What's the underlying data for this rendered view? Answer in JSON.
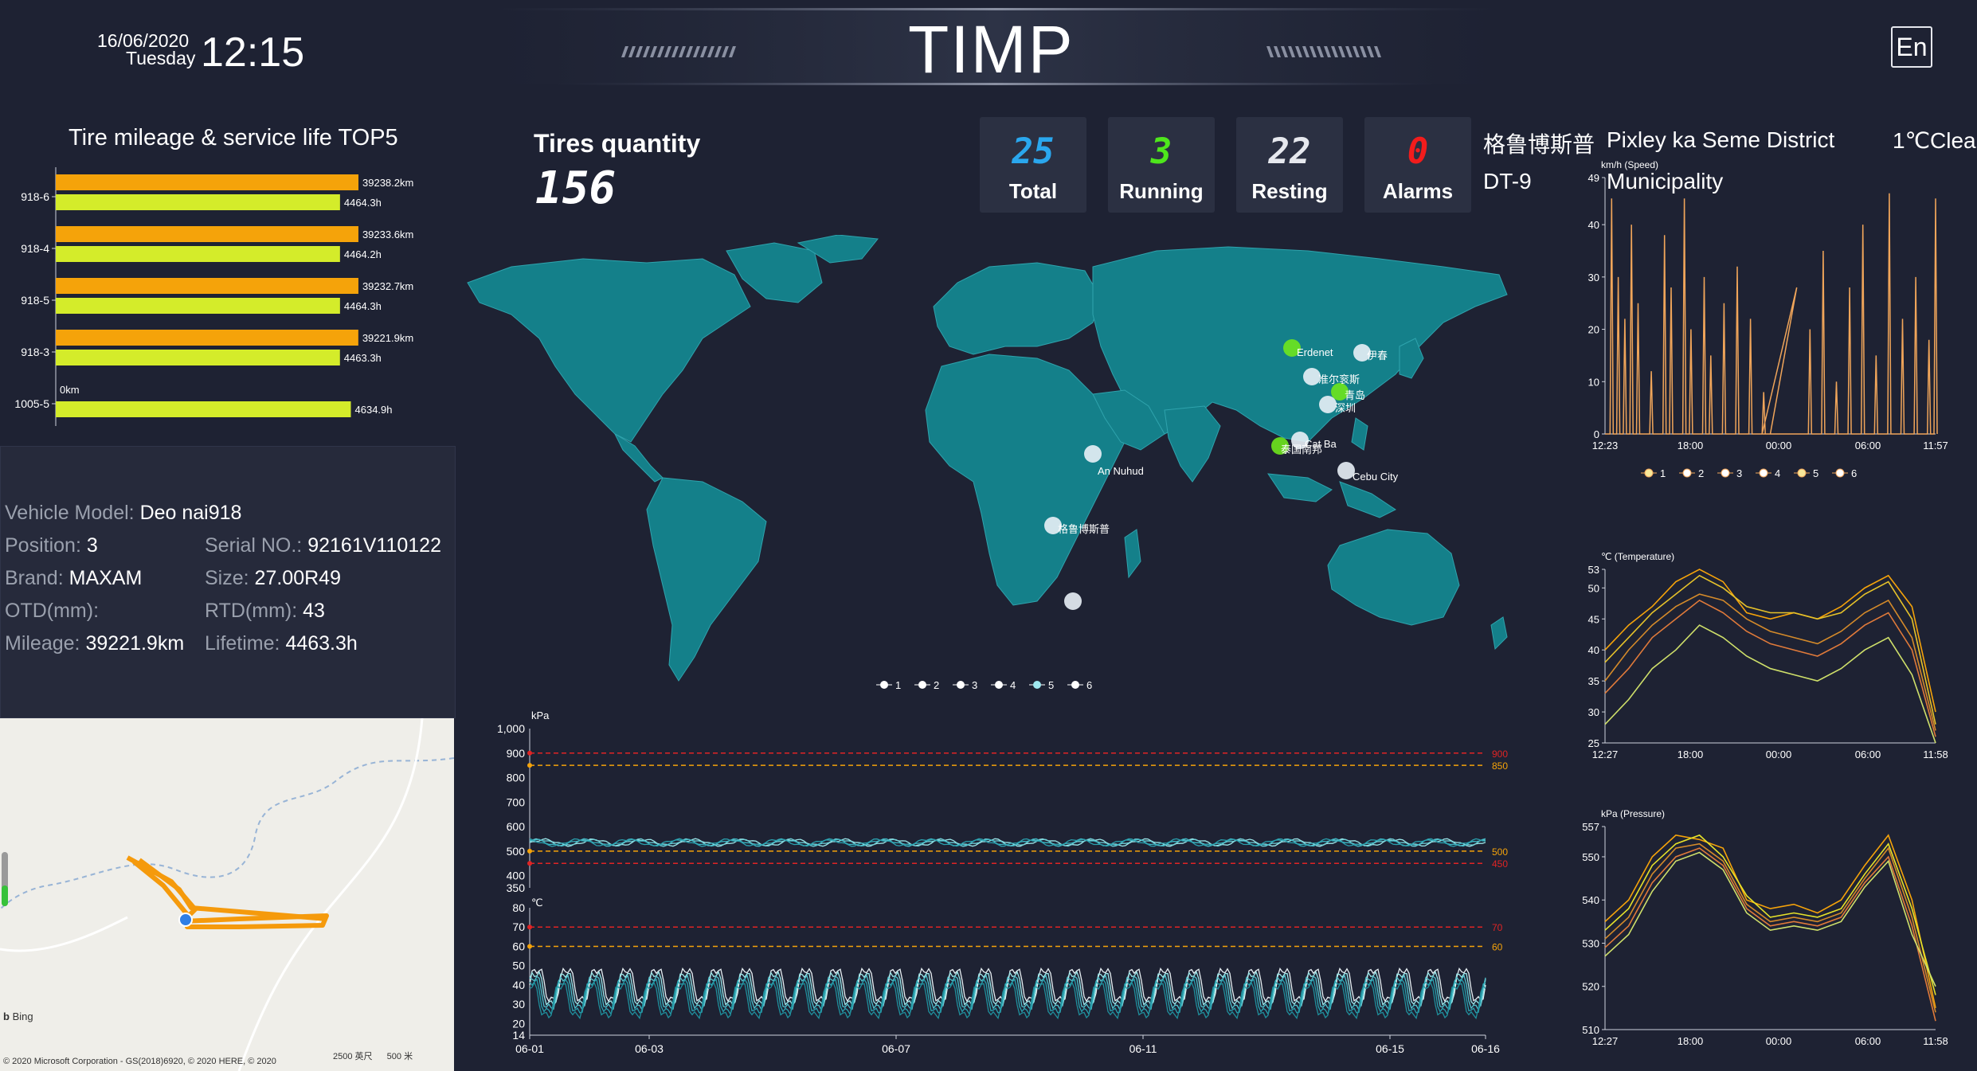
{
  "header": {
    "date": "16/06/2020",
    "weekday": "Tuesday",
    "time": "12:15",
    "title": "TIMP",
    "lang_button": "En"
  },
  "top5": {
    "title": "Tire mileage & service life TOP5",
    "rows": [
      {
        "label": "918-6",
        "mileage_km": 39238.2,
        "mileage_text": "39238.2km",
        "hours": 4464.3,
        "hours_text": "4464.3h"
      },
      {
        "label": "918-4",
        "mileage_km": 39233.6,
        "mileage_text": "39233.6km",
        "hours": 4464.2,
        "hours_text": "4464.2h"
      },
      {
        "label": "918-5",
        "mileage_km": 39232.7,
        "mileage_text": "39232.7km",
        "hours": 4464.3,
        "hours_text": "4464.3h"
      },
      {
        "label": "918-3",
        "mileage_km": 39221.9,
        "mileage_text": "39221.9km",
        "hours": 4463.3,
        "hours_text": "4463.3h"
      },
      {
        "label": "1005-5",
        "mileage_km": 0,
        "mileage_text": "0km",
        "hours": 4634.9,
        "hours_text": "4634.9h"
      }
    ],
    "colors": {
      "mileage": "#f5a30a",
      "hours": "#d4ec2a"
    }
  },
  "vehicle": {
    "model_label": "Vehicle Model:",
    "model": "Deo nai918",
    "position_label": "Position:",
    "position": "3",
    "serial_label": "Serial NO.:",
    "serial": "92161V110122",
    "brand_label": "Brand:",
    "brand": "MAXAM",
    "size_label": "Size:",
    "size": "27.00R49",
    "otd_label": "OTD(mm):",
    "otd": "",
    "rtd_label": "RTD(mm):",
    "rtd": "43",
    "mileage_label": "Mileage:",
    "mileage": "39221.9km",
    "lifetime_label": "Lifetime:",
    "lifetime": "4463.3h"
  },
  "map_mini": {
    "bing": "Bing",
    "copyright": "© 2020 Microsoft Corporation - GS(2018)6920, © 2020 HERE, © 2020",
    "scale_ft": "2500 英尺",
    "scale_m": "500 米"
  },
  "tires": {
    "title": "Tires quantity",
    "count": "156"
  },
  "stats": [
    {
      "num": "25",
      "label": "Total",
      "color": "#2aa7ee"
    },
    {
      "num": "3",
      "label": "Running",
      "color": "#4ee61c"
    },
    {
      "num": "22",
      "label": "Resting",
      "color": "#e6e8ee"
    },
    {
      "num": "0",
      "label": "Alarms",
      "color": "#f21c1c"
    }
  ],
  "location": {
    "name": "格鲁博斯普",
    "district": "Pixley ka Seme District",
    "weather": "1℃Clear",
    "vehicle": "DT-9",
    "municipality": "Municipality"
  },
  "world_map": {
    "labels": [
      "Erdenet",
      "伊春",
      "准尔衮斯",
      "青岛",
      "深圳",
      "Cat Ba",
      "泰国南邦",
      "Cebu City",
      "An Nuhud",
      "格鲁博斯普"
    ],
    "legend": [
      "1",
      "2",
      "3",
      "4",
      "5",
      "6"
    ],
    "colors": {
      "land": "#14808a",
      "border": "#2fa3ad",
      "ocean": "#1e2233",
      "running": "#6ee61c",
      "resting": "#e8f0f6"
    }
  },
  "pressure_chart": {
    "unit": "kPa",
    "y_ticks": [
      "1,000",
      "900",
      "800",
      "700",
      "600",
      "500",
      "400",
      "350"
    ],
    "thresholds": [
      {
        "value": "900",
        "color": "#e02424"
      },
      {
        "value": "850",
        "color": "#f5a30a"
      },
      {
        "value": "500",
        "color": "#f5a30a"
      },
      {
        "value": "450",
        "color": "#e02424"
      }
    ]
  },
  "temp_chart": {
    "unit": "℃",
    "y_ticks": [
      "80",
      "70",
      "60",
      "50",
      "40",
      "30",
      "20",
      "14"
    ],
    "thresholds": [
      {
        "value": "70",
        "color": "#e02424"
      },
      {
        "value": "60",
        "color": "#f5a30a"
      }
    ],
    "x_ticks": [
      "06-01",
      "06-03",
      "06-07",
      "06-11",
      "06-15",
      "06-16"
    ]
  },
  "speed_chart": {
    "unit": "km/h (Speed)",
    "y_ticks": [
      "49",
      "40",
      "30",
      "20",
      "10",
      "0"
    ],
    "x_ticks": [
      "12:23",
      "18:00",
      "00:00",
      "06:00",
      "11:57"
    ],
    "legend": [
      "1",
      "2",
      "3",
      "4",
      "5",
      "6"
    ],
    "color": "#f0a55a"
  },
  "temperature_chart": {
    "unit": "℃ (Temperature)",
    "y_ticks": [
      "53",
      "50",
      "45",
      "40",
      "35",
      "30",
      "25"
    ],
    "x_ticks": [
      "12:27",
      "18:00",
      "00:00",
      "06:00",
      "11:58"
    ]
  },
  "pressure_right_chart": {
    "unit": "kPa (Pressure)",
    "y_ticks": [
      "557",
      "550",
      "540",
      "530",
      "520",
      "510"
    ],
    "x_ticks": [
      "12:27",
      "18:00",
      "00:00",
      "06:00",
      "11:58"
    ]
  },
  "chart_data": [
    {
      "type": "bar",
      "title": "Tire mileage & service life TOP5",
      "categories": [
        "918-6",
        "918-4",
        "918-5",
        "918-3",
        "1005-5"
      ],
      "series": [
        {
          "values": [
            39238.2,
            39233.6,
            39232.7,
            39221.9,
            0
          ]
        },
        {
          "values": [
            4464.3,
            4464.2,
            4464.3,
            4463.3,
            4634.9
          ]
        }
      ],
      "orientation": "horizontal"
    },
    {
      "type": "line",
      "ylabel": "kPa",
      "ylim": [
        350,
        1000
      ],
      "x_ticks": [
        "06-01",
        "06-03",
        "06-07",
        "06-11",
        "06-15",
        "06-16"
      ],
      "series": [
        {
          "values": [
            530,
            545,
            525,
            548,
            530,
            545,
            525,
            548
          ]
        }
      ],
      "thresholds": [
        900,
        850,
        500,
        450
      ]
    },
    {
      "type": "line",
      "ylabel": "℃",
      "ylim": [
        14,
        80
      ],
      "x_ticks": [
        "06-01",
        "06-03",
        "06-07",
        "06-11",
        "06-15",
        "06-16"
      ],
      "series": [
        {
          "values": [
            48,
            30,
            50,
            32,
            49,
            31,
            50,
            30
          ]
        }
      ],
      "thresholds": [
        70,
        60
      ]
    },
    {
      "type": "line",
      "ylabel": "km/h (Speed)",
      "ylim": [
        0,
        49
      ],
      "x_ticks": [
        "12:23",
        "18:00",
        "00:00",
        "06:00",
        "11:57"
      ],
      "legend": [
        "1",
        "2",
        "3",
        "4",
        "5",
        "6"
      ]
    },
    {
      "type": "line",
      "ylabel": "℃ (Temperature)",
      "ylim": [
        25,
        53
      ],
      "x_ticks": [
        "12:27",
        "18:00",
        "00:00",
        "06:00",
        "11:58"
      ],
      "series": [
        {
          "values": [
            40,
            44,
            47,
            51,
            53,
            51,
            46,
            45,
            46,
            45,
            47,
            50,
            52,
            47,
            30
          ]
        },
        {
          "values": [
            38,
            42,
            46,
            49,
            52,
            50,
            47,
            46,
            46,
            45,
            46,
            49,
            51,
            45,
            28
          ]
        },
        {
          "values": [
            35,
            40,
            44,
            47,
            49,
            48,
            45,
            43,
            42,
            41,
            43,
            46,
            48,
            42,
            27
          ]
        },
        {
          "values": [
            33,
            37,
            42,
            45,
            48,
            46,
            43,
            41,
            40,
            39,
            41,
            44,
            46,
            40,
            26
          ]
        },
        {
          "values": [
            28,
            32,
            37,
            40,
            44,
            42,
            39,
            37,
            36,
            35,
            37,
            40,
            42,
            36,
            25
          ]
        }
      ]
    },
    {
      "type": "line",
      "ylabel": "kPa (Pressure)",
      "ylim": [
        510,
        557
      ],
      "x_ticks": [
        "12:27",
        "18:00",
        "00:00",
        "06:00",
        "11:58"
      ],
      "series": [
        {
          "values": [
            535,
            540,
            550,
            555,
            554,
            552,
            540,
            538,
            539,
            537,
            540,
            548,
            555,
            540,
            515
          ]
        },
        {
          "values": [
            533,
            538,
            548,
            553,
            555,
            550,
            541,
            536,
            537,
            536,
            538,
            546,
            553,
            538,
            518
          ]
        },
        {
          "values": [
            531,
            536,
            546,
            552,
            553,
            549,
            539,
            535,
            536,
            535,
            537,
            545,
            552,
            536,
            514
          ]
        },
        {
          "values": [
            529,
            534,
            544,
            550,
            552,
            548,
            538,
            534,
            535,
            534,
            536,
            544,
            550,
            534,
            512
          ]
        },
        {
          "values": [
            527,
            532,
            542,
            549,
            551,
            547,
            537,
            533,
            534,
            533,
            535,
            543,
            549,
            532,
            520
          ]
        }
      ]
    }
  ]
}
